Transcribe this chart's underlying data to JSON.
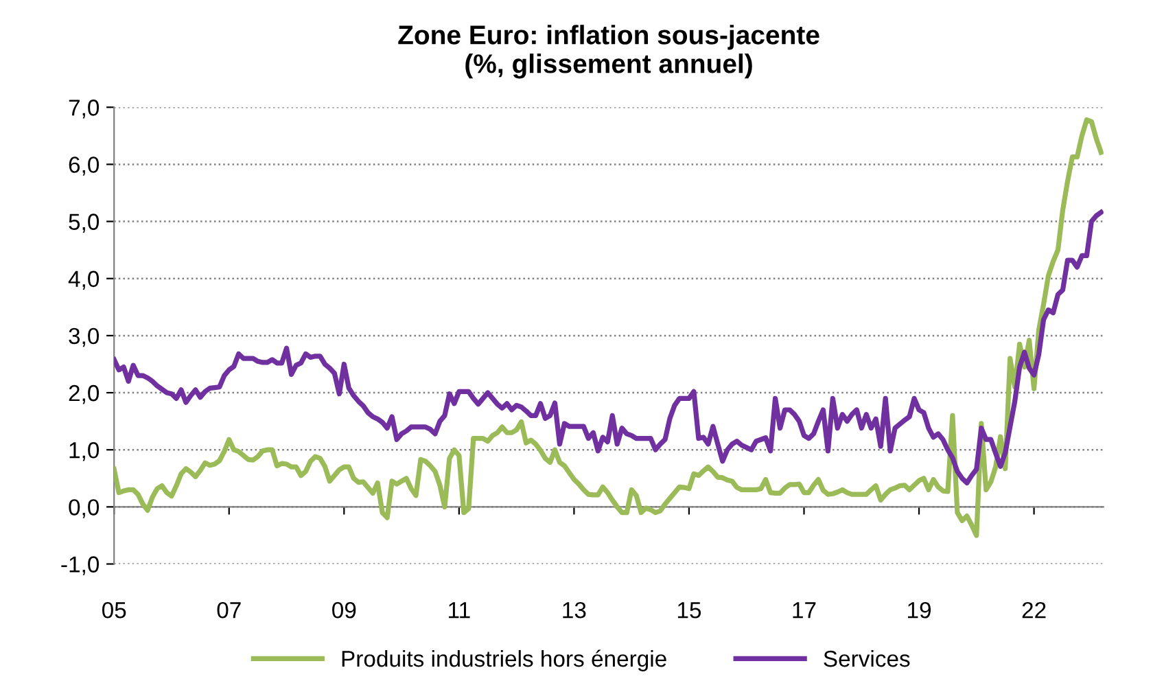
{
  "chart_data": {
    "type": "line",
    "title": "Zone Euro: inflation sous-jacente\n(%, glissement annuel)",
    "categories": [
      "05",
      null,
      null,
      null,
      null,
      null,
      null,
      null,
      null,
      null,
      null,
      null,
      null,
      null,
      null,
      null,
      null,
      null,
      null,
      null,
      null,
      null,
      null,
      null,
      "07",
      null,
      null,
      null,
      null,
      null,
      null,
      null,
      null,
      null,
      null,
      null,
      null,
      null,
      null,
      null,
      null,
      null,
      null,
      null,
      null,
      null,
      null,
      null,
      "09",
      null,
      null,
      null,
      null,
      null,
      null,
      null,
      null,
      null,
      null,
      null,
      null,
      null,
      null,
      null,
      null,
      null,
      null,
      null,
      null,
      null,
      null,
      null,
      "11",
      null,
      null,
      null,
      null,
      null,
      null,
      null,
      null,
      null,
      null,
      null,
      null,
      null,
      null,
      null,
      null,
      null,
      null,
      null,
      null,
      null,
      null,
      null,
      "13",
      null,
      null,
      null,
      null,
      null,
      null,
      null,
      null,
      null,
      null,
      null,
      null,
      null,
      null,
      null,
      null,
      null,
      null,
      null,
      null,
      null,
      null,
      null,
      "15",
      null,
      null,
      null,
      null,
      null,
      null,
      null,
      null,
      null,
      null,
      null,
      null,
      null,
      null,
      null,
      null,
      null,
      null,
      null,
      null,
      null,
      null,
      null,
      "17",
      null,
      null,
      null,
      null,
      null,
      null,
      null,
      null,
      null,
      null,
      null,
      null,
      null,
      null,
      null,
      null,
      null,
      null,
      null,
      null,
      null,
      null,
      null,
      "19",
      null,
      null,
      null,
      null,
      null,
      null,
      null,
      null,
      null,
      null,
      null,
      null,
      null,
      null,
      null,
      null,
      null,
      null,
      null,
      null,
      null,
      null,
      null,
      "22",
      null,
      null,
      null,
      null,
      null,
      null,
      null,
      null,
      null,
      null,
      null,
      null,
      null,
      null
    ],
    "ylim": [
      -1,
      7
    ],
    "yticks": [
      {
        "value": -1,
        "label": "-1,0"
      },
      {
        "value": 0,
        "label": "0,0"
      },
      {
        "value": 1,
        "label": "1,0"
      },
      {
        "value": 2,
        "label": "2,0"
      },
      {
        "value": 3,
        "label": "3,0"
      },
      {
        "value": 4,
        "label": "4,0"
      },
      {
        "value": 5,
        "label": "5,0"
      },
      {
        "value": 6,
        "label": "6,0"
      },
      {
        "value": 7,
        "label": "7,0"
      }
    ],
    "grid": "y",
    "legend": "bottom",
    "marker": "none",
    "line_style": "solid",
    "series": [
      {
        "name": "Produits industriels hors énergie",
        "color": "#9bbb59",
        "values": [
          0.66,
          0.25,
          0.28,
          0.3,
          0.3,
          0.22,
          0.05,
          -0.06,
          0.17,
          0.32,
          0.37,
          0.25,
          0.19,
          0.37,
          0.58,
          0.67,
          0.61,
          0.53,
          0.64,
          0.77,
          0.73,
          0.75,
          0.81,
          0.97,
          1.18,
          1.0,
          0.97,
          0.9,
          0.83,
          0.82,
          0.88,
          0.98,
          1.0,
          1.0,
          0.72,
          0.76,
          0.75,
          0.7,
          0.7,
          0.55,
          0.62,
          0.8,
          0.88,
          0.85,
          0.71,
          0.45,
          0.55,
          0.65,
          0.7,
          0.7,
          0.5,
          0.43,
          0.44,
          0.34,
          0.24,
          0.42,
          -0.1,
          -0.19,
          0.45,
          0.4,
          0.45,
          0.5,
          0.32,
          0.2,
          0.83,
          0.8,
          0.72,
          0.62,
          0.38,
          0.0,
          0.85,
          1.0,
          0.9,
          -0.1,
          -0.03,
          1.2,
          1.2,
          1.2,
          1.15,
          1.25,
          1.3,
          1.4,
          1.3,
          1.3,
          1.35,
          1.49,
          1.12,
          1.17,
          1.1,
          0.99,
          0.85,
          0.78,
          1.0,
          0.78,
          0.72,
          0.6,
          0.48,
          0.4,
          0.3,
          0.22,
          0.21,
          0.21,
          0.35,
          0.25,
          0.12,
          0.0,
          -0.1,
          -0.1,
          0.3,
          0.2,
          -0.1,
          -0.02,
          -0.05,
          -0.1,
          -0.07,
          0.05,
          0.15,
          0.25,
          0.35,
          0.34,
          0.32,
          0.58,
          0.55,
          0.63,
          0.7,
          0.62,
          0.52,
          0.51,
          0.47,
          0.45,
          0.34,
          0.3,
          0.3,
          0.3,
          0.3,
          0.32,
          0.48,
          0.25,
          0.24,
          0.24,
          0.33,
          0.39,
          0.39,
          0.4,
          0.25,
          0.25,
          0.38,
          0.48,
          0.29,
          0.22,
          0.23,
          0.26,
          0.3,
          0.25,
          0.22,
          0.22,
          0.22,
          0.22,
          0.3,
          0.37,
          0.12,
          0.22,
          0.3,
          0.33,
          0.37,
          0.38,
          0.3,
          0.38,
          0.46,
          0.5,
          0.3,
          0.48,
          0.35,
          0.28,
          0.27,
          1.6,
          -0.1,
          -0.24,
          -0.16,
          -0.32,
          -0.5,
          1.46,
          0.3,
          0.44,
          0.7,
          1.23,
          0.67,
          2.6,
          2.1,
          2.85,
          2.45,
          2.92,
          2.07,
          3.1,
          3.55,
          4.05,
          4.3,
          4.5,
          5.2,
          5.7,
          6.13,
          6.13,
          6.5,
          6.78,
          6.75,
          6.45,
          6.21
        ]
      },
      {
        "name": "Services",
        "color": "#7030a0",
        "values": [
          2.58,
          2.4,
          2.45,
          2.2,
          2.48,
          2.3,
          2.3,
          2.26,
          2.2,
          2.12,
          2.06,
          2.0,
          1.98,
          1.9,
          2.05,
          1.83,
          1.95,
          2.05,
          1.92,
          2.02,
          2.08,
          2.09,
          2.1,
          2.3,
          2.4,
          2.46,
          2.68,
          2.6,
          2.6,
          2.6,
          2.55,
          2.53,
          2.53,
          2.58,
          2.52,
          2.52,
          2.78,
          2.32,
          2.48,
          2.52,
          2.68,
          2.62,
          2.64,
          2.64,
          2.5,
          2.43,
          2.34,
          1.98,
          2.5,
          2.08,
          1.95,
          1.85,
          1.77,
          1.65,
          1.58,
          1.54,
          1.48,
          1.38,
          1.58,
          1.18,
          1.28,
          1.33,
          1.4,
          1.4,
          1.4,
          1.4,
          1.36,
          1.28,
          1.5,
          1.6,
          1.98,
          1.81,
          2.02,
          2.02,
          2.02,
          1.9,
          1.8,
          1.9,
          2.0,
          1.9,
          1.8,
          1.73,
          1.81,
          1.7,
          1.78,
          1.75,
          1.68,
          1.6,
          1.6,
          1.81,
          1.55,
          1.6,
          1.82,
          1.1,
          1.46,
          1.41,
          1.41,
          1.41,
          1.41,
          1.2,
          1.3,
          0.98,
          1.22,
          1.14,
          1.6,
          1.1,
          1.38,
          1.28,
          1.25,
          1.2,
          1.2,
          1.2,
          1.2,
          1.0,
          1.1,
          1.18,
          1.55,
          1.78,
          1.9,
          1.9,
          1.9,
          2.02,
          1.2,
          1.22,
          1.1,
          1.41,
          1.1,
          0.8,
          1.0,
          1.1,
          1.15,
          1.08,
          1.04,
          1.0,
          1.15,
          1.18,
          1.21,
          0.98,
          1.9,
          1.38,
          1.7,
          1.7,
          1.62,
          1.5,
          1.25,
          1.2,
          1.28,
          1.5,
          1.7,
          0.98,
          1.9,
          1.38,
          1.62,
          1.5,
          1.62,
          1.7,
          1.38,
          1.62,
          1.38,
          1.54,
          1.06,
          1.9,
          0.98,
          1.38,
          1.45,
          1.52,
          1.58,
          1.9,
          1.7,
          1.65,
          1.38,
          1.22,
          1.28,
          1.18,
          1.0,
          0.86,
          0.62,
          0.5,
          0.42,
          0.55,
          0.66,
          1.38,
          1.18,
          1.18,
          0.94,
          0.71,
          0.95,
          1.4,
          1.85,
          2.45,
          2.71,
          2.43,
          2.31,
          2.67,
          3.28,
          3.45,
          3.4,
          3.72,
          3.8,
          4.32,
          4.32,
          4.2,
          4.4,
          4.4,
          5.0,
          5.1,
          5.16
        ]
      }
    ]
  }
}
